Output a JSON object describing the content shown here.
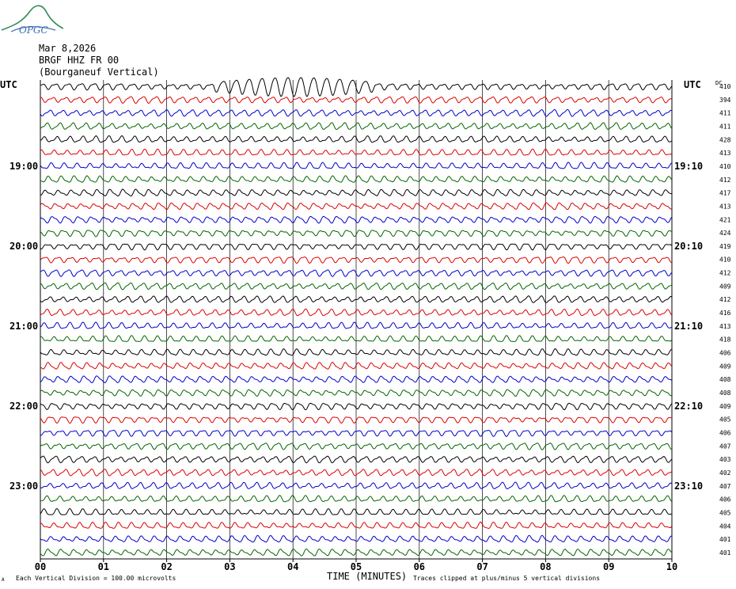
{
  "logo": {
    "text": "OPGC"
  },
  "header": {
    "date": "Mar 8,2026",
    "station": "BRGF HHZ FR 00",
    "location": "(Bourganeuf Vertical)"
  },
  "labels": {
    "utc_left": "UTC",
    "utc_right": "UTC",
    "dc": "DC",
    "time_axis": "TIME (MINUTES)",
    "scale_note": "Each Vertical Division =  100.00 microvolts",
    "clip_note": "Traces clipped at plus/minus 5 vertical divisions",
    "corner": "A"
  },
  "colors": {
    "cycle": [
      "#000000",
      "#dd0000",
      "#0000cc",
      "#006600"
    ],
    "grid": "#000000"
  },
  "chart_data": {
    "type": "line",
    "xlabel": "TIME (MINUTES)",
    "xlim": [
      0,
      10
    ],
    "x_ticks": [
      "00",
      "01",
      "02",
      "03",
      "04",
      "05",
      "06",
      "07",
      "08",
      "09",
      "10"
    ],
    "left_hour_labels": [
      {
        "row": 6,
        "label": "19:00"
      },
      {
        "row": 12,
        "label": "20:00"
      },
      {
        "row": 18,
        "label": "21:00"
      },
      {
        "row": 24,
        "label": "22:00"
      },
      {
        "row": 30,
        "label": "23:00"
      }
    ],
    "right_hour_labels": [
      {
        "row": 6,
        "label": "19:10"
      },
      {
        "row": 12,
        "label": "20:10"
      },
      {
        "row": 18,
        "label": "21:10"
      },
      {
        "row": 24,
        "label": "22:10"
      },
      {
        "row": 30,
        "label": "23:10"
      }
    ],
    "dc_offsets": [
      410,
      394,
      411,
      411,
      428,
      413,
      410,
      412,
      417,
      413,
      421,
      424,
      419,
      410,
      412,
      409,
      412,
      416,
      413,
      418,
      406,
      409,
      408,
      408,
      409,
      405,
      406,
      407,
      403,
      402,
      407,
      406,
      405,
      404,
      401,
      401
    ],
    "trace_count": 36,
    "rows_per_hour": 6,
    "minutes_per_row": 10,
    "scale_microvolts_per_division": 100.0,
    "clip_divisions": 5
  }
}
